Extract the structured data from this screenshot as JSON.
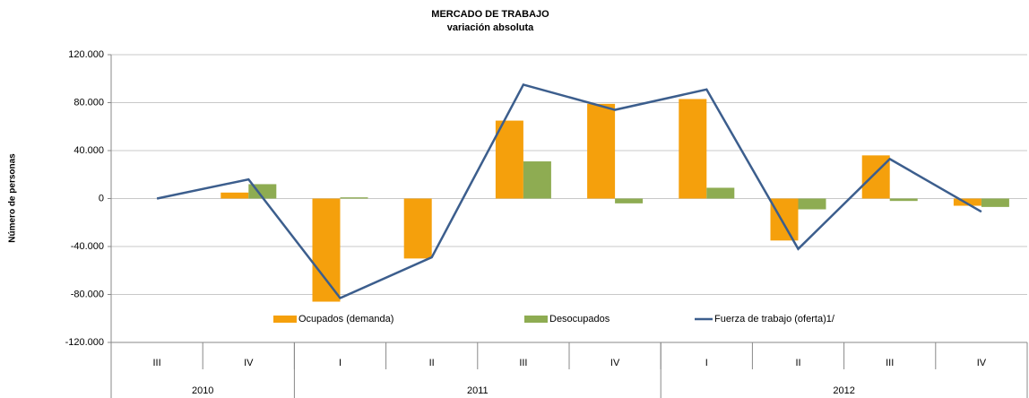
{
  "chart_data": {
    "type": "bar",
    "title": "MERCADO DE TRABAJO",
    "subtitle": "variación absoluta",
    "y_label": "Número de personas",
    "categories": [
      "III",
      "IV",
      "I",
      "II",
      "III",
      "IV",
      "I",
      "II",
      "III",
      "IV"
    ],
    "groups": [
      {
        "label": "2010",
        "span": 2
      },
      {
        "label": "2011",
        "span": 4
      },
      {
        "label": "2012",
        "span": 4
      }
    ],
    "series": [
      {
        "name": "Ocupados (demanda)",
        "color": "#f5a00c",
        "kind": "bar",
        "values": [
          0,
          5000,
          -86000,
          -50000,
          65000,
          79000,
          83000,
          -35000,
          36000,
          -6000
        ]
      },
      {
        "name": "Desocupados",
        "color": "#8eac52",
        "kind": "bar",
        "values": [
          0,
          12000,
          1000,
          0,
          31000,
          -4000,
          9000,
          -9000,
          -2000,
          -7000
        ]
      },
      {
        "name": "Fuerza de trabajo (oferta)1/",
        "color": "#3c5e8d",
        "kind": "line",
        "values": [
          0,
          16000,
          -83000,
          -49000,
          95000,
          74000,
          91000,
          -42000,
          33000,
          -11000
        ]
      }
    ],
    "ylim": [
      -120000,
      120000
    ],
    "yticks": [
      {
        "value": 120000,
        "label": "120.000"
      },
      {
        "value": 80000,
        "label": "80.000"
      },
      {
        "value": 40000,
        "label": "40.000"
      },
      0,
      {
        "value": -40000,
        "label": "-40.000"
      },
      {
        "value": -80000,
        "label": "-80.000"
      },
      {
        "value": -120000,
        "label": "-120.000"
      }
    ],
    "grid": true
  }
}
